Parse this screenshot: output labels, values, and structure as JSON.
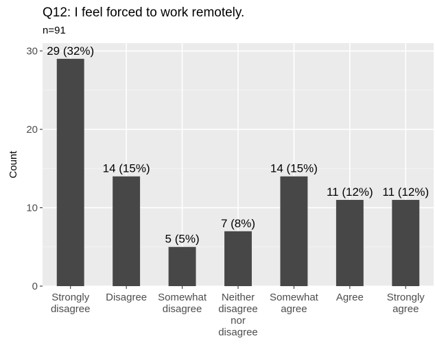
{
  "chart_data": {
    "type": "bar",
    "title": "Q12: I feel forced to work remotely.",
    "subtitle": "n=91",
    "xlabel": "",
    "ylabel": "Count",
    "ylim": [
      0,
      31
    ],
    "yticks": [
      0,
      10,
      20,
      30
    ],
    "grid": true,
    "bar_color": "#474747",
    "panel_color": "#ebebeb",
    "categories": [
      [
        "Strongly",
        "disagree"
      ],
      [
        "Disagree"
      ],
      [
        "Somewhat",
        "disagree"
      ],
      [
        "Neither",
        "disagree",
        "nor",
        "disagree"
      ],
      [
        "Somewhat",
        "agree"
      ],
      [
        "Agree"
      ],
      [
        "Strongly",
        "agree"
      ]
    ],
    "values": [
      29,
      14,
      5,
      7,
      14,
      11,
      11
    ],
    "data_labels": [
      "29 (32%)",
      "14 (15%)",
      "5 (5%)",
      "7 (8%)",
      "14 (15%)",
      "11 (12%)",
      "11 (12%)"
    ]
  }
}
